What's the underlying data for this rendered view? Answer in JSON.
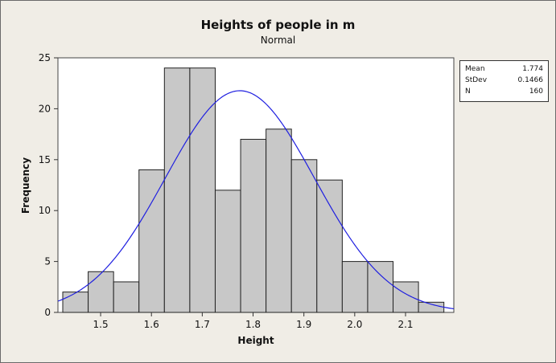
{
  "chart_data": {
    "type": "bar",
    "title": "Heights of people in m",
    "subtitle": "Normal",
    "xlabel": "Height",
    "ylabel": "Frequency",
    "bin_edges": [
      1.4255,
      1.4755,
      1.5255,
      1.5755,
      1.6255,
      1.6755,
      1.7255,
      1.7755,
      1.8255,
      1.8755,
      1.9255,
      1.9755,
      2.0255,
      2.0755,
      2.1255,
      2.1755
    ],
    "values": [
      2,
      4,
      3,
      14,
      24,
      24,
      12,
      17,
      18,
      15,
      13,
      5,
      5,
      3,
      1
    ],
    "xlim": [
      1.416,
      2.195
    ],
    "ylim": [
      0,
      25
    ],
    "x_ticks": [
      1.5,
      1.6,
      1.7,
      1.8,
      1.9,
      2.0,
      2.1
    ],
    "x_tick_labels": [
      "1.5",
      "1.6",
      "1.7",
      "1.8",
      "1.9",
      "2.0",
      "2.1"
    ],
    "y_ticks": [
      0,
      5,
      10,
      15,
      20,
      25
    ],
    "y_tick_labels": [
      "0",
      "5",
      "10",
      "15",
      "20",
      "25"
    ],
    "fit": {
      "type": "normal",
      "mean": 1.774,
      "stdev": 0.1466,
      "n": 160,
      "color": "#1f1fe0"
    },
    "bar_fill": "#c8c8c8",
    "bar_stroke": "#222222",
    "grid": false,
    "legend_position": "top-right"
  },
  "stats": [
    {
      "label": "Mean",
      "value": "1.774"
    },
    {
      "label": "StDev",
      "value": "0.1466"
    },
    {
      "label": "N",
      "value": "160"
    }
  ]
}
